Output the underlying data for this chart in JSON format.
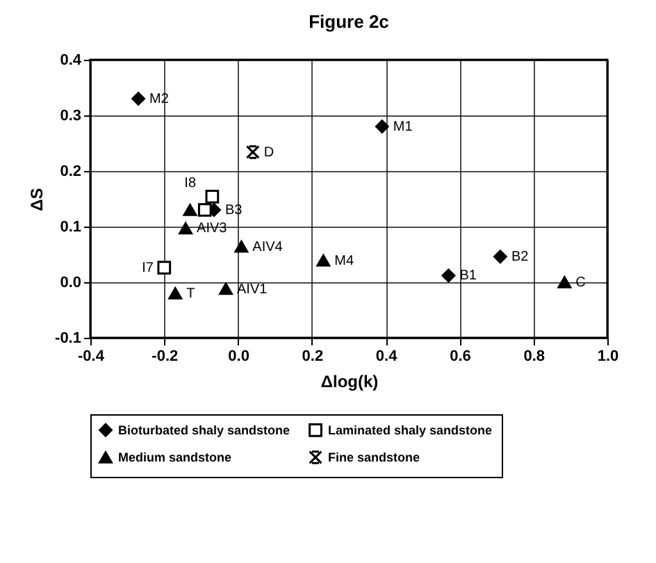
{
  "chart_data": {
    "type": "scatter",
    "title": "Figure 2c",
    "xlabel": "Δlog(k)",
    "ylabel": "ΔS",
    "xlim": [
      -0.4,
      1.0
    ],
    "xticks": [
      {
        "value": -0.4,
        "label": "-0.4"
      },
      {
        "value": -0.2,
        "label": "-0.2"
      },
      {
        "value": 0,
        "label": "0.0"
      },
      {
        "value": 0.2,
        "label": "0.2"
      },
      {
        "value": 0.4,
        "label": "0.4"
      },
      {
        "value": 0.6,
        "label": "0.6"
      },
      {
        "value": 0.8,
        "label": "0.8"
      },
      {
        "value": 1.0,
        "label": "1.0"
      }
    ],
    "ylim": [
      -0.1,
      0.4
    ],
    "yticks": [
      {
        "value": -0.1,
        "label": "-0.1"
      },
      {
        "value": 0,
        "label": "0.0"
      },
      {
        "value": 0.1,
        "label": "0.1"
      },
      {
        "value": 0.2,
        "label": "0.2"
      },
      {
        "value": 0.3,
        "label": "0.3"
      },
      {
        "value": 0.4,
        "label": "0.4"
      }
    ],
    "grid": true,
    "legend": "bottom",
    "series": [
      {
        "name": "Bioturbated shaly sandstone",
        "color": "#000000",
        "marker": "diamond",
        "x": [
          -0.27,
          0.39,
          0.57,
          0.71,
          -0.065
        ],
        "values": [
          0.33,
          0.28,
          0.012,
          0.046,
          0.13
        ]
      },
      {
        "name": "Laminated shaly sandstone",
        "color": "#000000",
        "marker": "square",
        "x": [
          -0.07,
          -0.09,
          -0.2
        ],
        "values": [
          0.154,
          0.13,
          0.026
        ]
      },
      {
        "name": "Medium sandstone",
        "color": "#000000",
        "marker": "triangle",
        "x": [
          -0.13,
          -0.142,
          0.009,
          0.231,
          -0.17,
          -0.033,
          0.884
        ],
        "values": [
          0.13,
          0.097,
          0.064,
          0.039,
          -0.02,
          -0.012,
          0.0
        ]
      },
      {
        "name": "Fine sandstone",
        "color": "#000000",
        "marker": "cross",
        "x": [
          0.04
        ],
        "values": [
          0.234
        ]
      }
    ],
    "annotations": [
      {
        "text": "M2",
        "x": -0.27,
        "y": 0.33
      },
      {
        "text": "M1",
        "x": 0.39,
        "y": 0.28
      },
      {
        "text": "D",
        "x": 0.04,
        "y": 0.234
      },
      {
        "text": "I8",
        "x": -0.07,
        "y": 0.154
      },
      {
        "text": "B3",
        "x": -0.065,
        "y": 0.13
      },
      {
        "text": "AIV3",
        "x": -0.142,
        "y": 0.097
      },
      {
        "text": "AIV4",
        "x": 0.009,
        "y": 0.064
      },
      {
        "text": "I7",
        "x": -0.2,
        "y": 0.026
      },
      {
        "text": "M4",
        "x": 0.231,
        "y": 0.039
      },
      {
        "text": "T",
        "x": -0.17,
        "y": -0.02
      },
      {
        "text": "AIV1",
        "x": -0.033,
        "y": -0.012
      },
      {
        "text": "B1",
        "x": 0.57,
        "y": 0.012
      },
      {
        "text": "B2",
        "x": 0.71,
        "y": 0.046
      },
      {
        "text": "C",
        "x": 0.884,
        "y": 0.0
      }
    ]
  }
}
